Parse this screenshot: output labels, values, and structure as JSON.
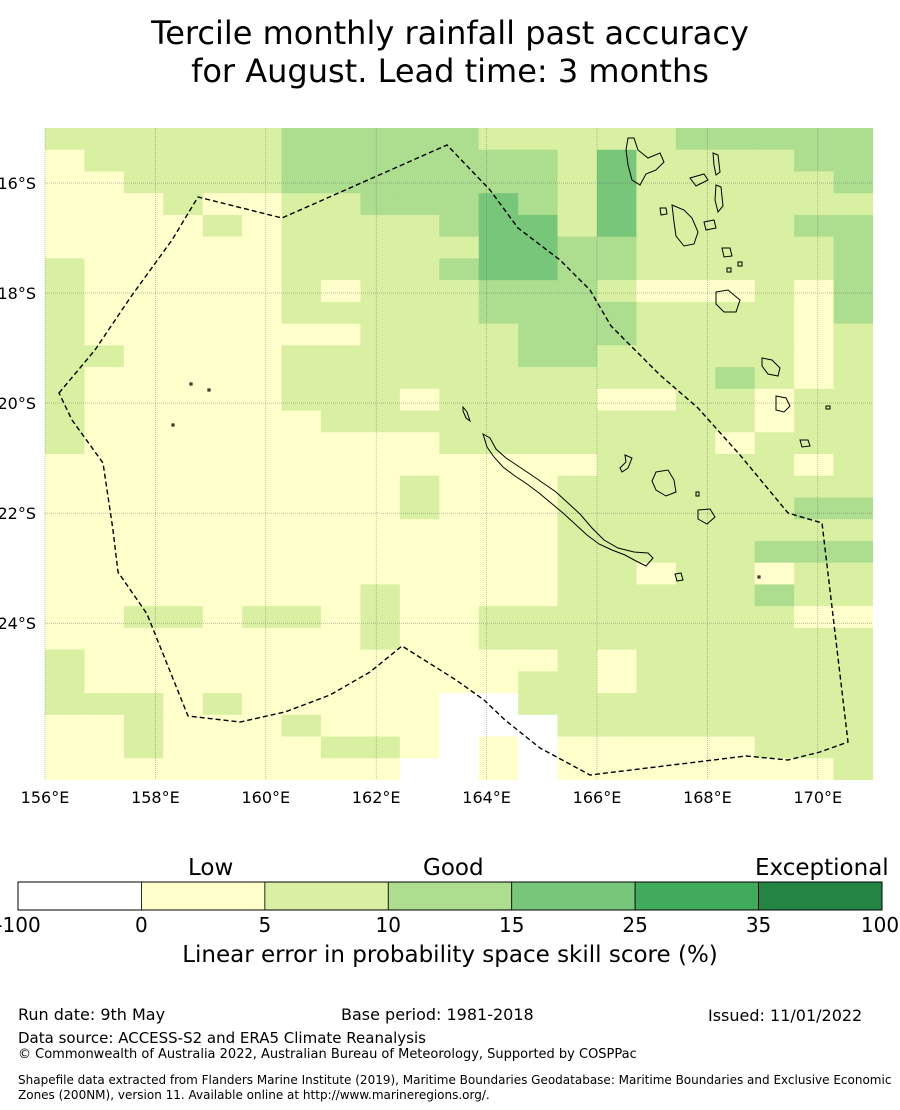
{
  "title": {
    "line1": "Tercile monthly rainfall past accuracy",
    "line2": "for August. Lead time: 3 months"
  },
  "map": {
    "x_ticks": [
      "156°E",
      "158°E",
      "160°E",
      "162°E",
      "164°E",
      "166°E",
      "168°E",
      "170°E"
    ],
    "y_ticks": [
      "16°S",
      "18°S",
      "20°S",
      "22°S",
      "24°S"
    ],
    "lon_range": [
      156,
      171
    ],
    "lat_range": [
      -26.85,
      -15.0
    ],
    "grid": true,
    "colors": {
      "below_0": "#ffffff",
      "0_5": "#ffffcc",
      "5_10": "#d9f0a3",
      "10_15": "#addd8e",
      "15_25": "#78c679",
      "25_35": "#41ab5d",
      "35_100": "#238443"
    },
    "cells_legend": "0=<0, 1=0-5, 2=5-10, 3=10-15, 4=15-25",
    "cells": [
      "222222333332222233333",
      "122222333333324222233",
      "112222333333324222223",
      "111211223334324222222",
      "111121222234424222233",
      "111111222224433222223",
      "211111222234433222223",
      "211111212223332111213",
      "211111222223333222213",
      "211111112222333222212",
      "221111222222332222212",
      "211111222222222223212",
      "211111222122221122122",
      "211111122222222222122",
      "211111111122222221222",
      "111111111111112222212",
      "111111111211122222222",
      "111111111211122222233",
      "111111111111122222222",
      "111111111111122222333",
      "111111111111122122122",
      "111111112111122222322",
      "112212212112222222211",
      "111111112112222222222",
      "211111111111121222222",
      "211111111111221222222",
      "222121111100222222222",
      "112111211100022222222",
      "112111122101011111222",
      "111111111001011111112"
    ]
  },
  "colorbar": {
    "category_labels": [
      "Low",
      "Good",
      "Exceptional"
    ],
    "ticks": [
      "-100",
      "0",
      "5",
      "10",
      "15",
      "25",
      "35",
      "100"
    ],
    "bins": [
      "#ffffff",
      "#ffffcc",
      "#d9f0a3",
      "#addd8e",
      "#78c679",
      "#41ab5d",
      "#238443"
    ],
    "title": "Linear error in probability space skill score (%)"
  },
  "footer": {
    "run_date": "Run date: 9th May",
    "base_period": "Base period: 1981-2018",
    "issued": "Issued: 11/01/2022",
    "data_source": "Data source: ACCESS-S2 and ERA5 Climate Reanalysis",
    "copyright": "© Commonwealth of Australia 2022, Australian Bureau of Meteorology, Supported by COSPPac",
    "shapefile": "Shapefile data extracted from Flanders Marine Institute (2019), Maritime Boundaries Geodatabase: Maritime Boundaries and Exclusive Economic Zones (200NM), version 11. Available online at http://www.marineregions.org/."
  }
}
